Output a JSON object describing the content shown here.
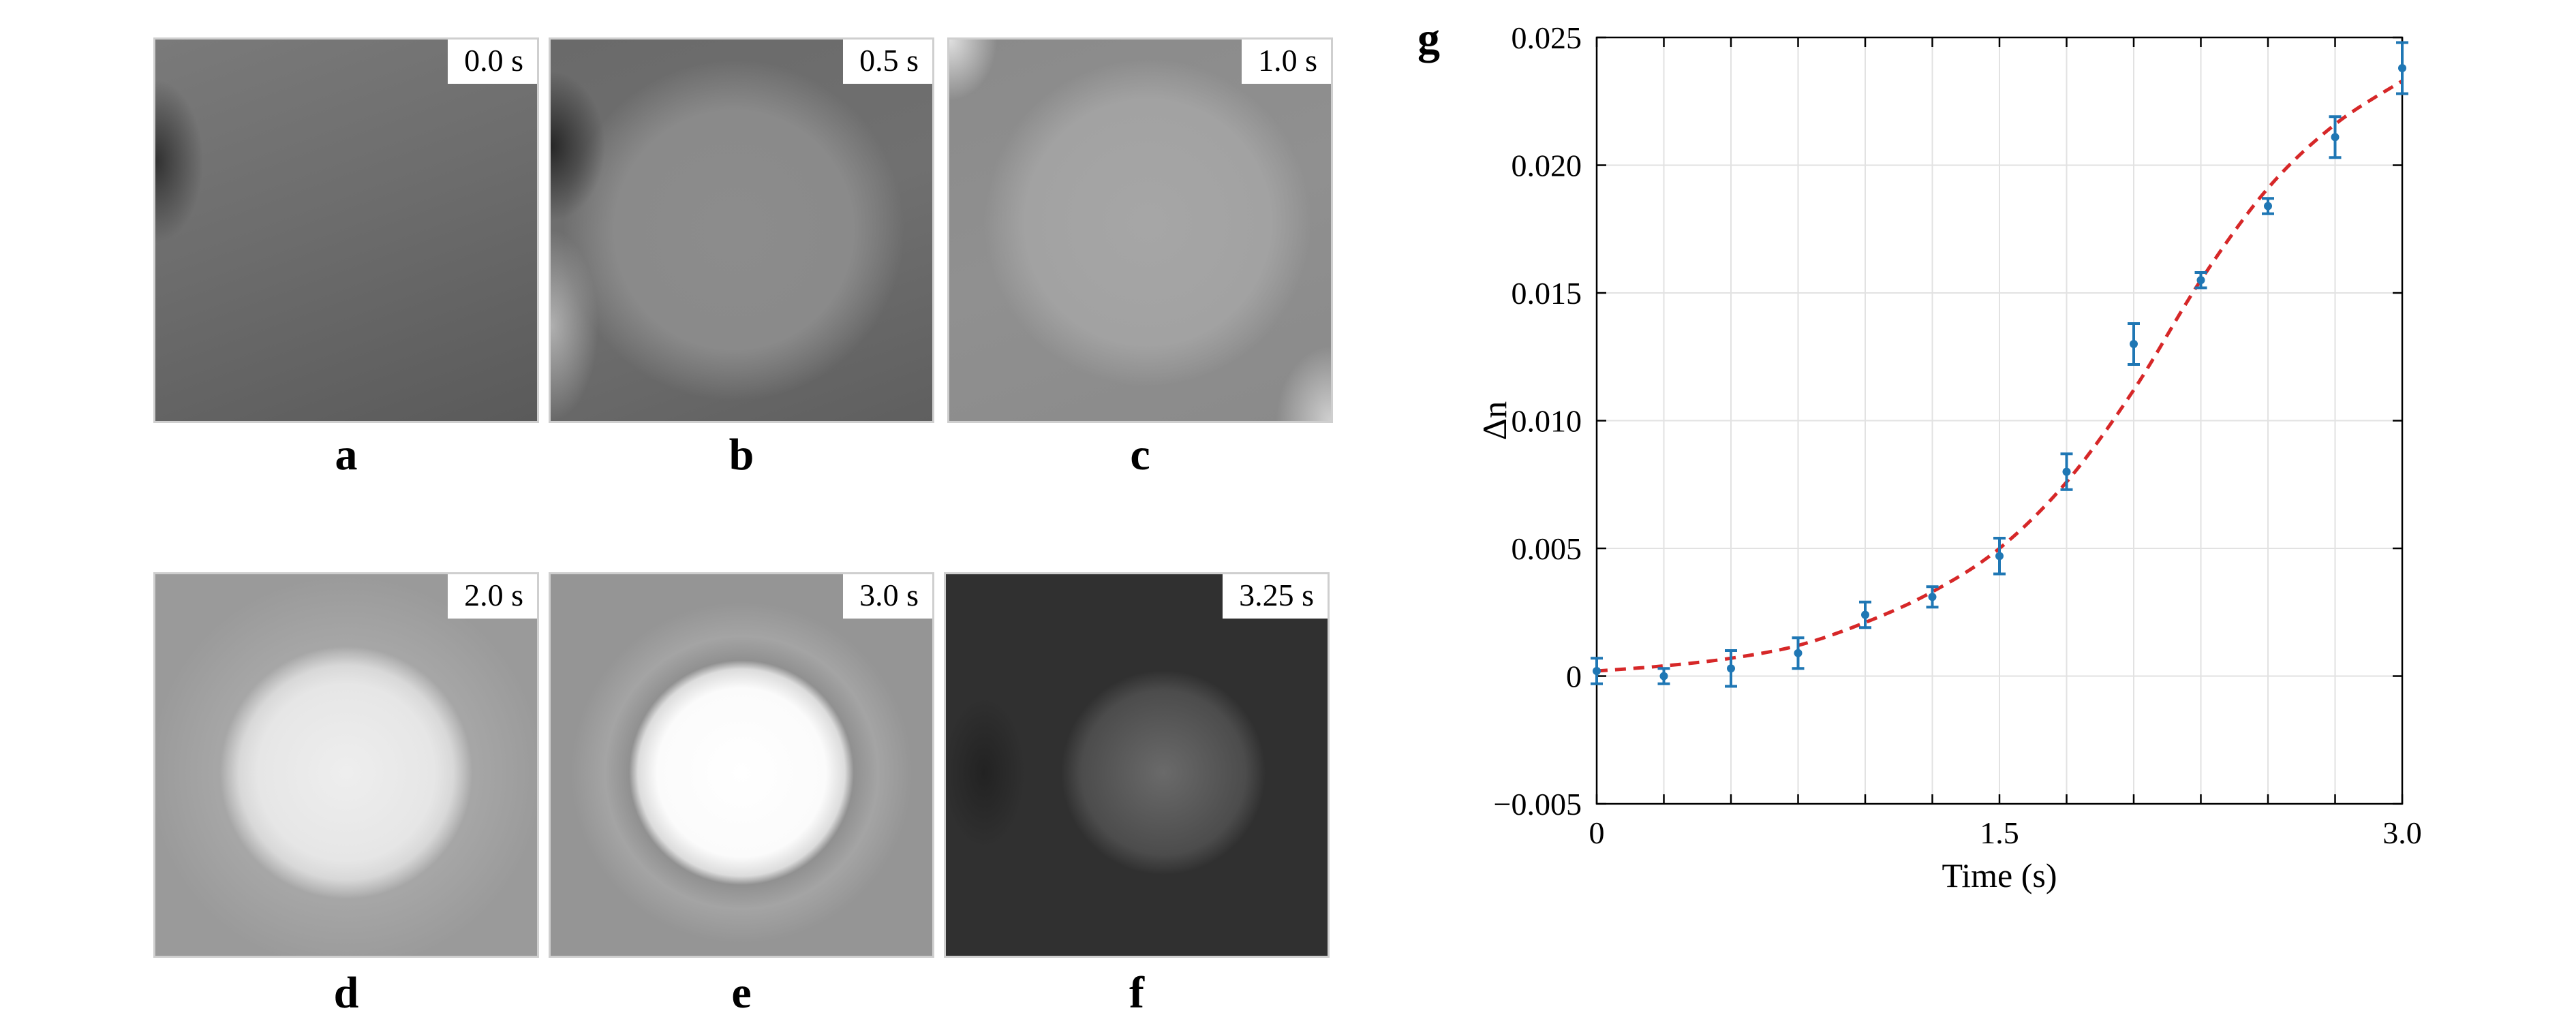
{
  "panels": [
    {
      "label": "a",
      "time": "0.0 s"
    },
    {
      "label": "b",
      "time": "0.5 s"
    },
    {
      "label": "c",
      "time": "1.0 s"
    },
    {
      "label": "d",
      "time": "2.0 s"
    },
    {
      "label": "e",
      "time": "3.0 s"
    },
    {
      "label": "f",
      "time": "3.25 s"
    }
  ],
  "chart_data": {
    "type": "scatter",
    "panel_label": "g",
    "xlabel": "Time (s)",
    "ylabel": "Δn",
    "xlim": [
      0,
      3.0
    ],
    "ylim": [
      -0.005,
      0.025
    ],
    "x_ticks": [
      0,
      1.5,
      3.0
    ],
    "x_tick_labels": [
      "0",
      "1.5",
      "3.0"
    ],
    "y_ticks": [
      -0.005,
      0,
      0.005,
      0.01,
      0.015,
      0.02,
      0.025
    ],
    "y_tick_labels": [
      "−0.005",
      "0",
      "0.005",
      "0.010",
      "0.015",
      "0.020",
      "0.025"
    ],
    "grid": true,
    "colors": {
      "points": "#1f77b4",
      "fit": "#d62728"
    },
    "series": [
      {
        "style": "points-with-error-bars",
        "x": [
          0,
          0.25,
          0.5,
          0.75,
          1.0,
          1.25,
          1.5,
          1.75,
          2.0,
          2.25,
          2.5,
          2.75,
          3.0
        ],
        "y": [
          0.0002,
          0.0,
          0.0003,
          0.0009,
          0.0024,
          0.0031,
          0.0047,
          0.008,
          0.013,
          0.0155,
          0.0184,
          0.0211,
          0.0238
        ],
        "err": [
          0.0005,
          0.0003,
          0.0007,
          0.0006,
          0.0005,
          0.0004,
          0.0007,
          0.0007,
          0.0008,
          0.0003,
          0.0003,
          0.0008,
          0.001
        ]
      },
      {
        "style": "dashed-line",
        "x": [
          0,
          0.25,
          0.5,
          0.75,
          1.0,
          1.25,
          1.5,
          1.75,
          2.0,
          2.25,
          2.5,
          2.75,
          3.0
        ],
        "y": [
          0.0002,
          0.0004,
          0.0007,
          0.0012,
          0.0021,
          0.0033,
          0.005,
          0.0076,
          0.0112,
          0.0155,
          0.0191,
          0.0216,
          0.0233
        ]
      }
    ]
  }
}
